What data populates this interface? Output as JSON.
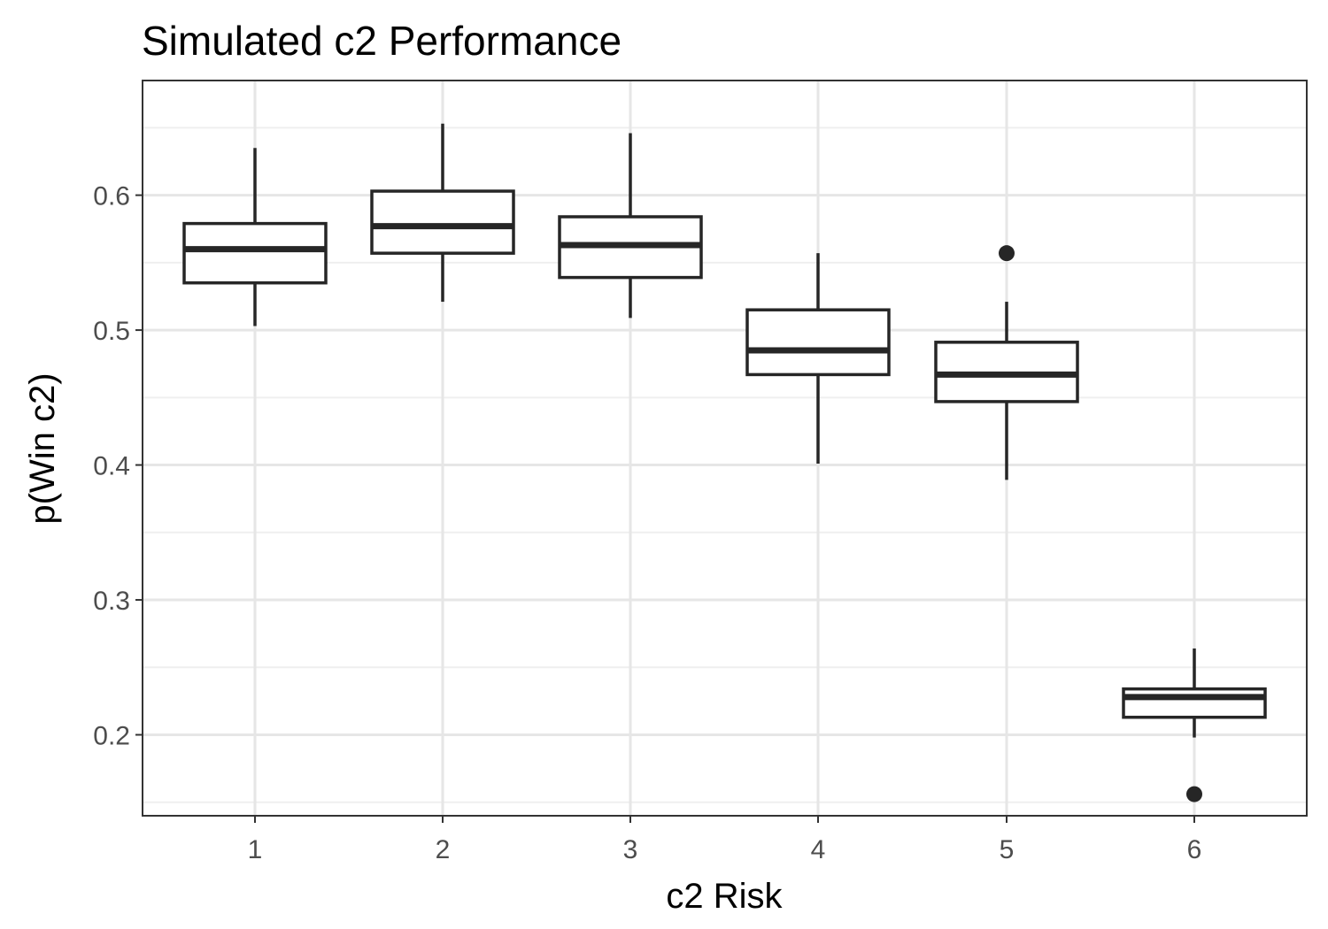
{
  "chart_data": {
    "type": "boxplot",
    "title": "Simulated c2 Performance",
    "xlabel": "c2 Risk",
    "ylabel": "p(Win c2)",
    "categories": [
      "1",
      "2",
      "3",
      "4",
      "5",
      "6"
    ],
    "ylim": [
      0.14,
      0.685
    ],
    "y_ticks": [
      0.2,
      0.3,
      0.4,
      0.5,
      0.6
    ],
    "y_tick_labels": [
      "0.2",
      "0.3",
      "0.4",
      "0.5",
      "0.6"
    ],
    "y_minor_grid": [
      0.15,
      0.25,
      0.35,
      0.45,
      0.55,
      0.65
    ],
    "grid": true,
    "legend": "none",
    "boxes": [
      {
        "category": "1",
        "whisker_low": 0.503,
        "q1": 0.535,
        "median": 0.56,
        "q3": 0.579,
        "whisker_high": 0.635,
        "outliers": []
      },
      {
        "category": "2",
        "whisker_low": 0.521,
        "q1": 0.557,
        "median": 0.577,
        "q3": 0.603,
        "whisker_high": 0.653,
        "outliers": []
      },
      {
        "category": "3",
        "whisker_low": 0.509,
        "q1": 0.539,
        "median": 0.563,
        "q3": 0.584,
        "whisker_high": 0.646,
        "outliers": []
      },
      {
        "category": "4",
        "whisker_low": 0.401,
        "q1": 0.467,
        "median": 0.485,
        "q3": 0.515,
        "whisker_high": 0.557,
        "outliers": []
      },
      {
        "category": "5",
        "whisker_low": 0.389,
        "q1": 0.447,
        "median": 0.467,
        "q3": 0.491,
        "whisker_high": 0.521,
        "outliers": [
          0.557
        ]
      },
      {
        "category": "6",
        "whisker_low": 0.198,
        "q1": 0.213,
        "median": 0.228,
        "q3": 0.234,
        "whisker_high": 0.264,
        "outliers": [
          0.156
        ]
      }
    ],
    "colors": {
      "box_stroke": "#262626",
      "grid_major": "#e6e6e6",
      "grid_minor": "#efefef",
      "panel_border": "#333333",
      "tick_label": "#4d4d4d",
      "outlier": "#262626"
    }
  }
}
